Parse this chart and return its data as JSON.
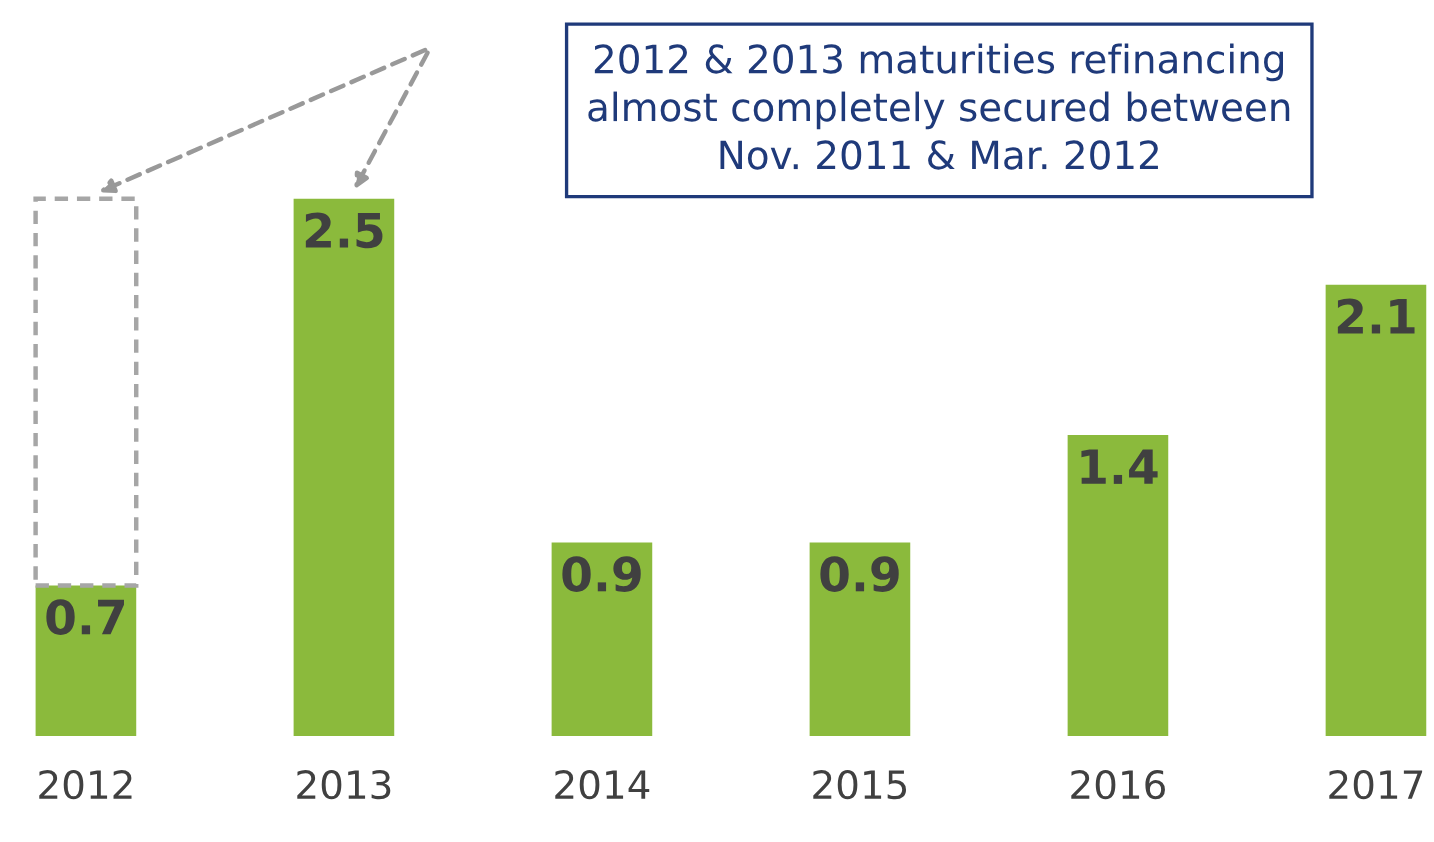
{
  "chart_data": {
    "type": "bar",
    "stacked": true,
    "categories": [
      "2012",
      "2013",
      "2014",
      "2015",
      "2016",
      "2017"
    ],
    "series": [
      {
        "color": "#8bba3c",
        "values": [
          0.7,
          2.5,
          0.9,
          0.9,
          1.4,
          2.1
        ],
        "value_labels": [
          "0.7",
          "2.5",
          "0.9",
          "0.9",
          "1.4",
          "2.1"
        ]
      },
      {
        "color": "#a6a6a6",
        "values": [
          1.8,
          null,
          null,
          null,
          null,
          null
        ],
        "line_style": "dashed"
      }
    ],
    "annotations": [
      "2012 & 2013 maturities refinancing\nalmost completely secured between\nNov. 2011 & Mar. 2012"
    ],
    "grid": false,
    "legend": false
  }
}
